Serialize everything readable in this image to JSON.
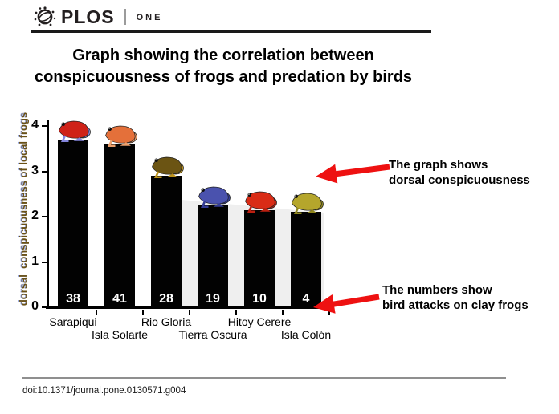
{
  "header": {
    "brand": "PLOS",
    "journal": "ONE"
  },
  "title": {
    "line1": "Graph showing the correlation between",
    "line2": "conspicuousness of frogs and predation by birds"
  },
  "chart_data": {
    "type": "bar",
    "categories": [
      "Sarapiqui",
      "Isla Solarte",
      "Rio Gloria",
      "Tierra Oscura",
      "Hitoy Cerere",
      "Isla Colón"
    ],
    "values": [
      3.7,
      3.6,
      2.9,
      2.25,
      2.15,
      2.1
    ],
    "bar_labels": [
      "38",
      "41",
      "28",
      "19",
      "10",
      "4"
    ],
    "bar_labels_meaning": "bird attacks on clay frogs",
    "title": "",
    "xlabel": "",
    "ylabel": "dorsal  conspicuousness of local frogs",
    "ylim": [
      0,
      4
    ],
    "yticks": [
      0,
      1,
      2,
      3,
      4
    ],
    "grid": false,
    "legend": false,
    "bar_color": "#020202",
    "bar_label_color": "#ffffff",
    "frogs": [
      {
        "name": "red-frog-blue-legs",
        "body": "#cf2218",
        "limb": "#8486dd"
      },
      {
        "name": "orange-frog",
        "body": "#e4703a",
        "limb": "#eda06c"
      },
      {
        "name": "yellow-striped-dark-frog",
        "body": "#6b5413",
        "limb": "#bb921c"
      },
      {
        "name": "blue-frog",
        "body": "#4a52ae",
        "limb": "#343c96"
      },
      {
        "name": "red-frog",
        "body": "#d92c16",
        "limb": "#bc1f10"
      },
      {
        "name": "yellow-green-frog",
        "body": "#b5a62c",
        "limb": "#8f861e"
      }
    ]
  },
  "annotations": [
    {
      "line1": "The graph shows",
      "line2": "dorsal conspicuousness",
      "arrow_color": "#ee1111"
    },
    {
      "line1": "The numbers show",
      "line2": "bird attacks on clay frogs",
      "arrow_color": "#ee1111"
    }
  ],
  "footer": {
    "doi": "doi:10.1371/journal.pone.0130571.g004"
  }
}
